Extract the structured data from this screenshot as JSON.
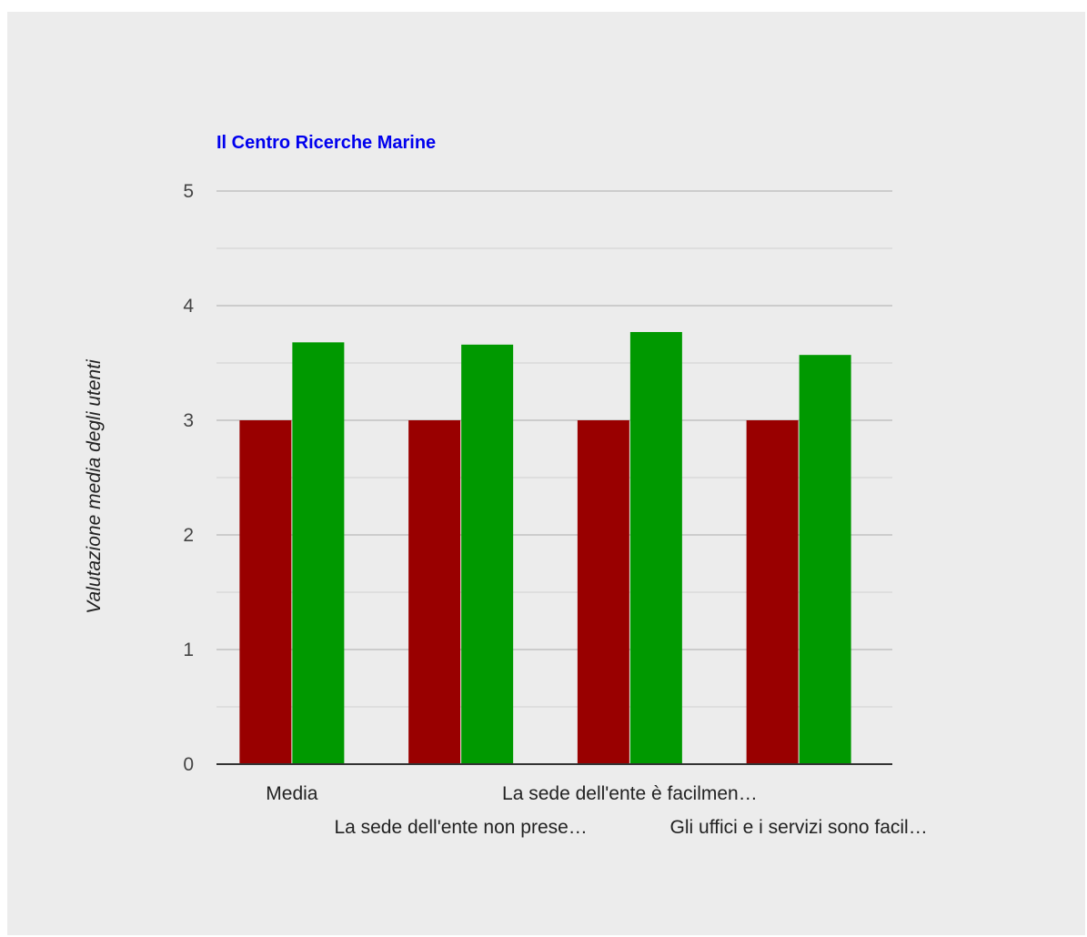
{
  "colors": {
    "background": "#ececec",
    "title": "#0000ee",
    "grid_major": "#cccccc",
    "grid_minor": "#dedede",
    "baseline": "#333333",
    "series_1": "#990000",
    "series_2": "#009900"
  },
  "chart_data": {
    "type": "bar",
    "title": "Il Centro Ricerche Marine",
    "xlabel": "",
    "ylabel": "Valutazione media degli utenti",
    "ylim": [
      0,
      5
    ],
    "yticks": [
      "0",
      "1",
      "2",
      "3",
      "4",
      "5"
    ],
    "minor_gridlines": true,
    "grid": true,
    "legend": "none",
    "categories": [
      "Media",
      "La sede dell'ente non prese…",
      "La sede dell'ente è facilmen…",
      "Gli uffici e i servizi sono facil…"
    ],
    "series": [
      {
        "values": [
          3.0,
          3.0,
          3.0,
          3.0
        ]
      },
      {
        "values": [
          3.68,
          3.66,
          3.77,
          3.57
        ]
      }
    ]
  }
}
